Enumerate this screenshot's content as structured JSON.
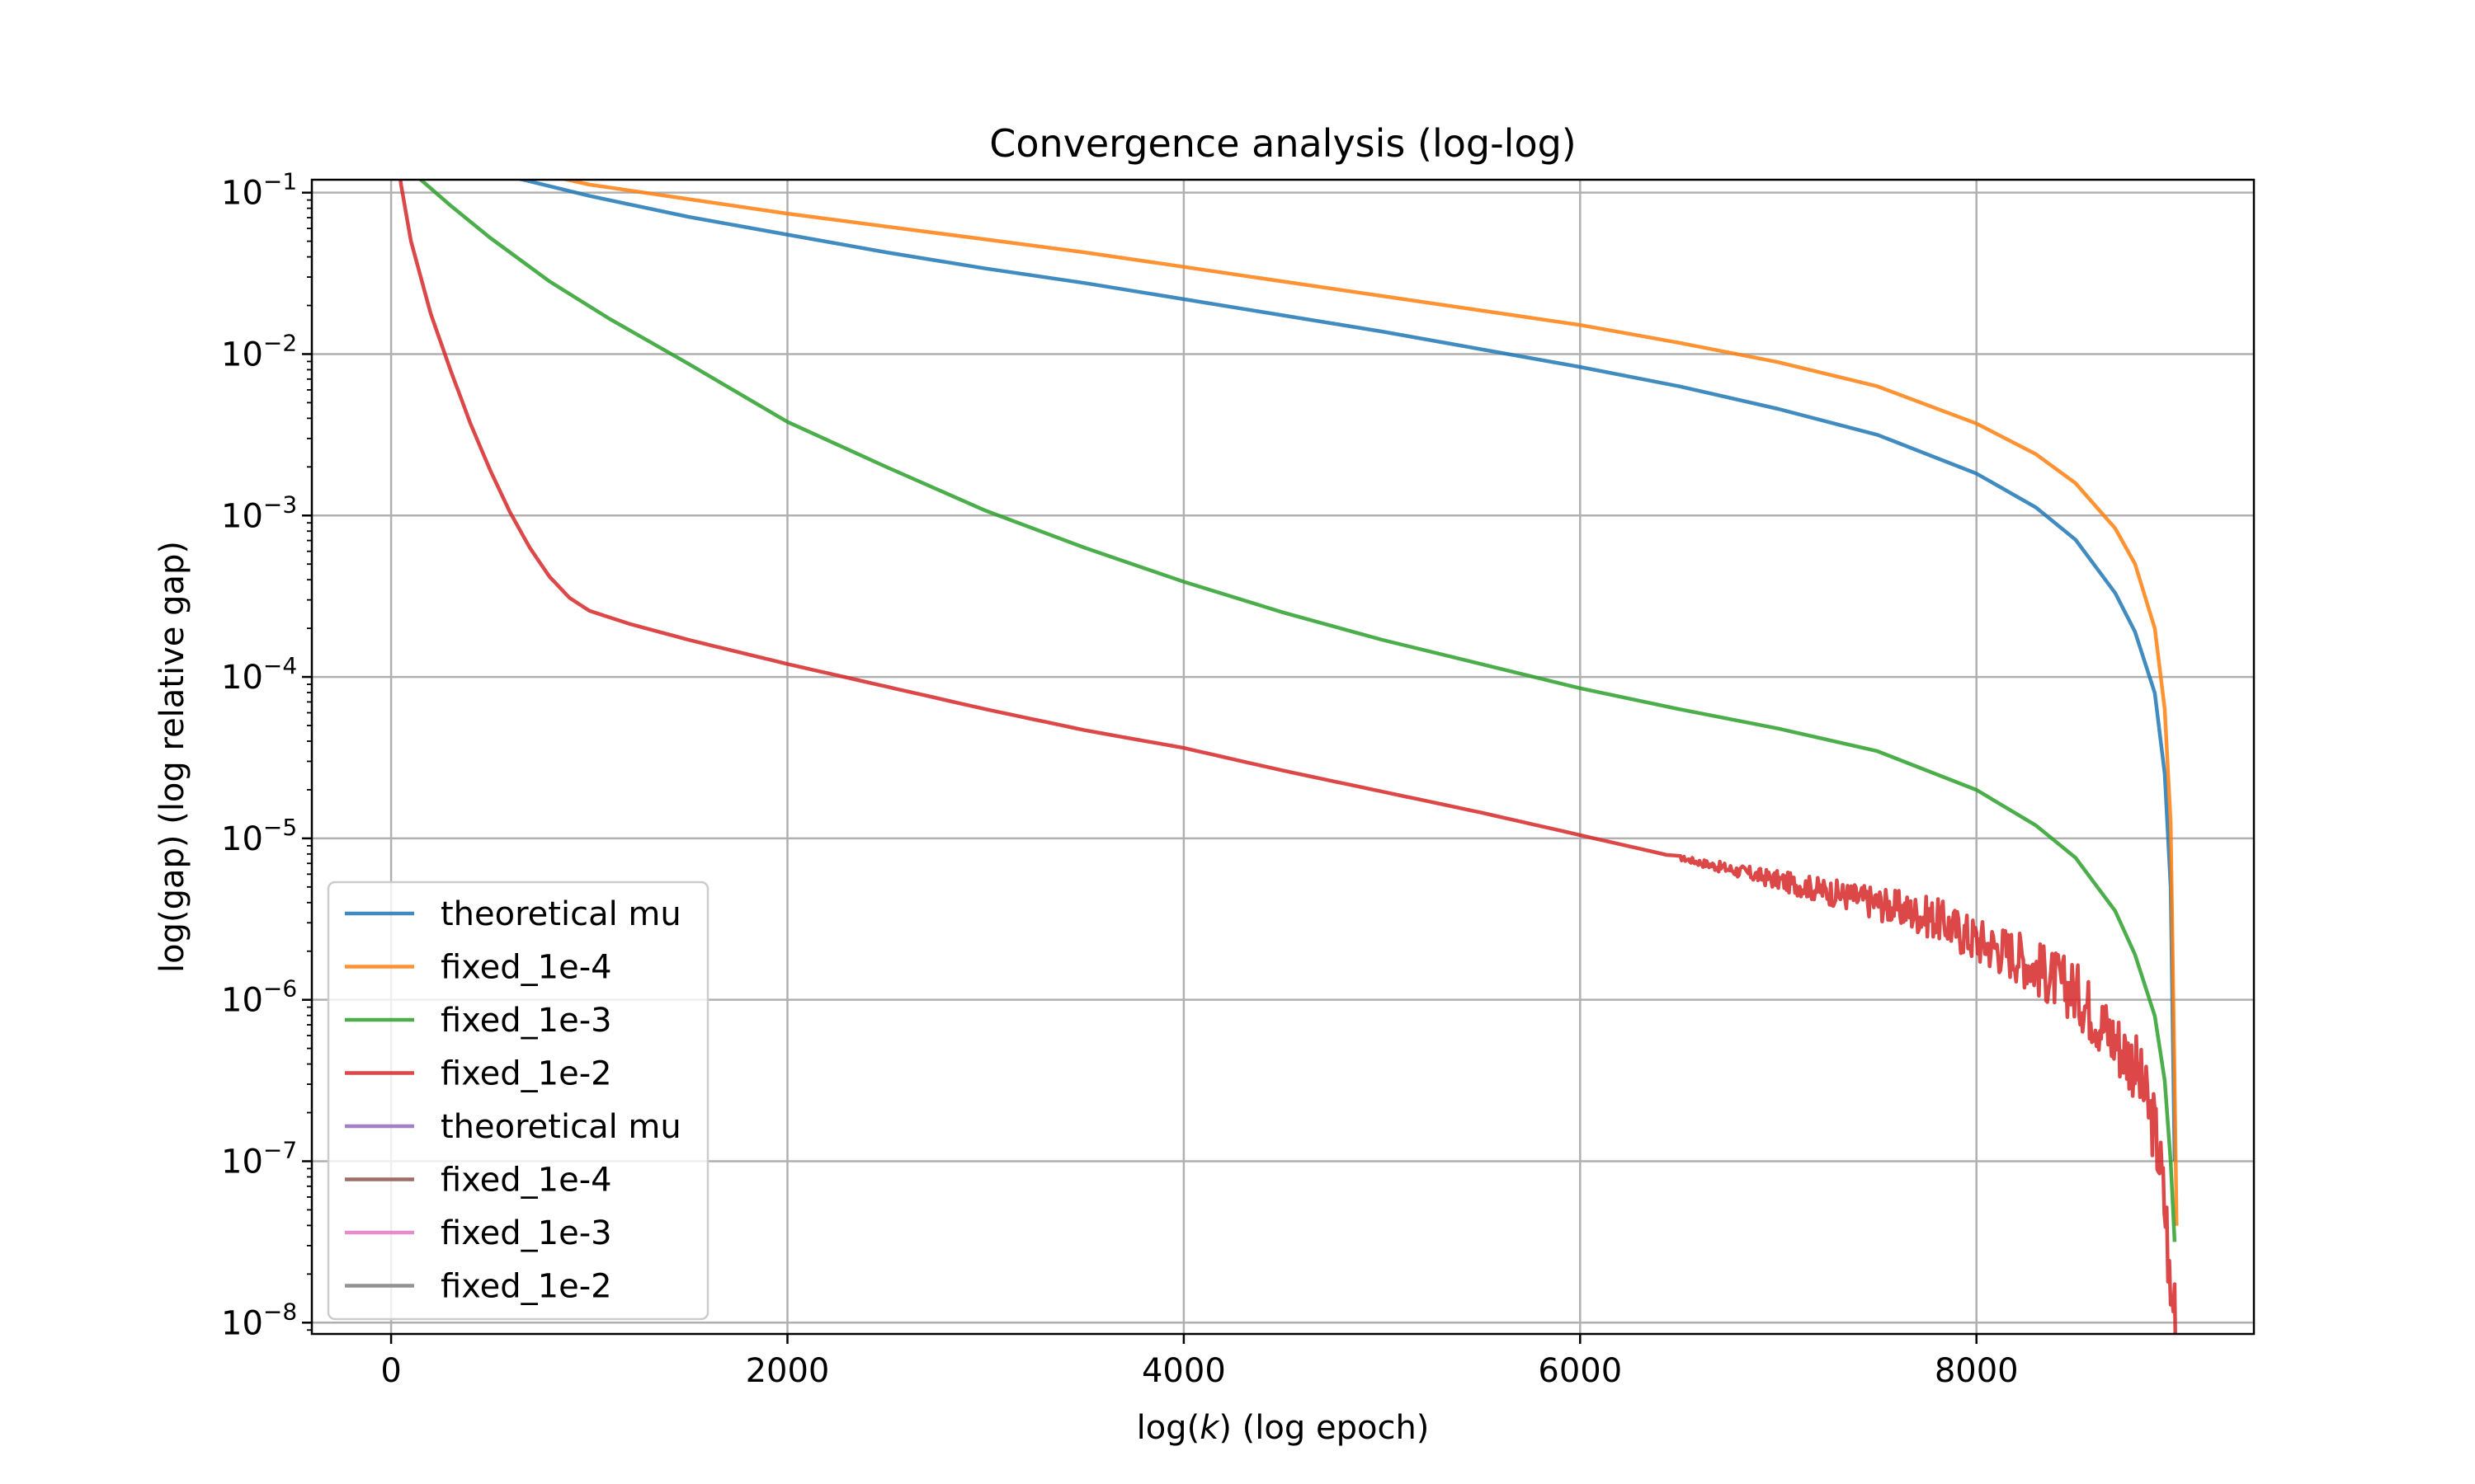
{
  "chart_data": {
    "type": "line",
    "title": "Convergence analysis (log-log)",
    "xlabel": "log(k) (log epoch)",
    "ylabel": "log(gap) (log relative gap)",
    "xlim": [
      -400,
      9400
    ],
    "ylim_log10": [
      -8.07,
      -0.92
    ],
    "yscale": "log",
    "grid": true,
    "legend_position": "lower-left",
    "x_ticks": [
      {
        "value": 0,
        "label": "0"
      },
      {
        "value": 2000,
        "label": "2000"
      },
      {
        "value": 4000,
        "label": "4000"
      },
      {
        "value": 6000,
        "label": "6000"
      },
      {
        "value": 8000,
        "label": "8000"
      }
    ],
    "y_ticks": [
      {
        "exp": -1,
        "base": "10",
        "sup": "−1"
      },
      {
        "exp": -2,
        "base": "10",
        "sup": "−2"
      },
      {
        "exp": -3,
        "base": "10",
        "sup": "−3"
      },
      {
        "exp": -4,
        "base": "10",
        "sup": "−4"
      },
      {
        "exp": -5,
        "base": "10",
        "sup": "−5"
      },
      {
        "exp": -6,
        "base": "10",
        "sup": "−6"
      },
      {
        "exp": -7,
        "base": "10",
        "sup": "−7"
      },
      {
        "exp": -8,
        "base": "10",
        "sup": "−8"
      }
    ],
    "series": [
      {
        "name": "theoretical mu",
        "color": "#1f77b4",
        "x": [
          0,
          100,
          300,
          600,
          1000,
          1500,
          2000,
          2500,
          3000,
          3500,
          4000,
          4500,
          5000,
          5500,
          6000,
          6500,
          7000,
          7500,
          8000,
          8300,
          8500,
          8700,
          8800,
          8900,
          8950,
          8980,
          9000
        ],
        "log10y": [
          -0.45,
          -0.65,
          -0.78,
          -0.9,
          -1.02,
          -1.15,
          -1.26,
          -1.37,
          -1.47,
          -1.56,
          -1.66,
          -1.76,
          -1.86,
          -1.97,
          -2.08,
          -2.2,
          -2.34,
          -2.5,
          -2.74,
          -2.95,
          -3.15,
          -3.48,
          -3.72,
          -4.1,
          -4.6,
          -5.3,
          -7.0
        ]
      },
      {
        "name": "fixed_1e-4",
        "color": "#ff7f0e",
        "x": [
          0,
          100,
          300,
          600,
          1000,
          1500,
          2000,
          2500,
          3000,
          3500,
          4000,
          4500,
          5000,
          5500,
          6000,
          6500,
          7000,
          7500,
          8000,
          8300,
          8500,
          8700,
          8800,
          8900,
          8950,
          8980,
          9000,
          9010
        ],
        "log10y": [
          -0.45,
          -0.6,
          -0.72,
          -0.84,
          -0.95,
          -1.04,
          -1.13,
          -1.21,
          -1.29,
          -1.37,
          -1.46,
          -1.55,
          -1.64,
          -1.73,
          -1.82,
          -1.93,
          -2.05,
          -2.2,
          -2.43,
          -2.62,
          -2.8,
          -3.08,
          -3.3,
          -3.7,
          -4.2,
          -4.9,
          -6.5,
          -7.4
        ]
      },
      {
        "name": "fixed_1e-3",
        "color": "#2ca02c",
        "x": [
          0,
          50,
          150,
          300,
          500,
          800,
          1100,
          1500,
          2000,
          2500,
          3000,
          3500,
          4000,
          4500,
          5000,
          5500,
          6000,
          6500,
          7000,
          7500,
          8000,
          8300,
          8500,
          8700,
          8800,
          8900,
          8950,
          8980,
          9000
        ],
        "log10y": [
          -0.45,
          -0.78,
          -0.92,
          -1.08,
          -1.28,
          -1.55,
          -1.78,
          -2.06,
          -2.42,
          -2.7,
          -2.97,
          -3.2,
          -3.41,
          -3.6,
          -3.77,
          -3.92,
          -4.07,
          -4.2,
          -4.32,
          -4.46,
          -4.7,
          -4.92,
          -5.12,
          -5.45,
          -5.72,
          -6.1,
          -6.5,
          -7.0,
          -7.5
        ]
      },
      {
        "name": "fixed_1e-2",
        "color": "#d62728",
        "x": [
          0,
          50,
          100,
          200,
          300,
          400,
          500,
          600,
          700,
          800,
          900,
          1000,
          1200,
          1500,
          2000,
          2500,
          3000,
          3500,
          4000,
          4500,
          5000,
          5500,
          6000,
          6500,
          7000,
          7500,
          7800,
          8000,
          8200,
          8400,
          8500,
          8600,
          8700,
          8800,
          8850,
          8900,
          8930,
          8960,
          8980,
          9000,
          9010
        ],
        "log10y": [
          -0.45,
          -0.95,
          -1.3,
          -1.75,
          -2.1,
          -2.43,
          -2.72,
          -2.98,
          -3.2,
          -3.38,
          -3.51,
          -3.59,
          -3.67,
          -3.77,
          -3.92,
          -4.06,
          -4.2,
          -4.33,
          -4.44,
          -4.58,
          -4.71,
          -4.84,
          -4.98,
          -5.12,
          -5.26,
          -5.4,
          -5.5,
          -5.63,
          -5.72,
          -5.88,
          -5.95,
          -6.1,
          -6.25,
          -6.4,
          -6.6,
          -6.8,
          -7.05,
          -7.4,
          -7.9,
          -7.8,
          -8.2
        ]
      },
      {
        "name": "theoretical mu",
        "color": "#9467bd",
        "x": [],
        "log10y": []
      },
      {
        "name": "fixed_1e-4",
        "color": "#8c564b",
        "x": [],
        "log10y": []
      },
      {
        "name": "fixed_1e-3",
        "color": "#e377c2",
        "x": [],
        "log10y": []
      },
      {
        "name": "fixed_1e-2",
        "color": "#7f7f7f",
        "x": [],
        "log10y": []
      }
    ]
  }
}
